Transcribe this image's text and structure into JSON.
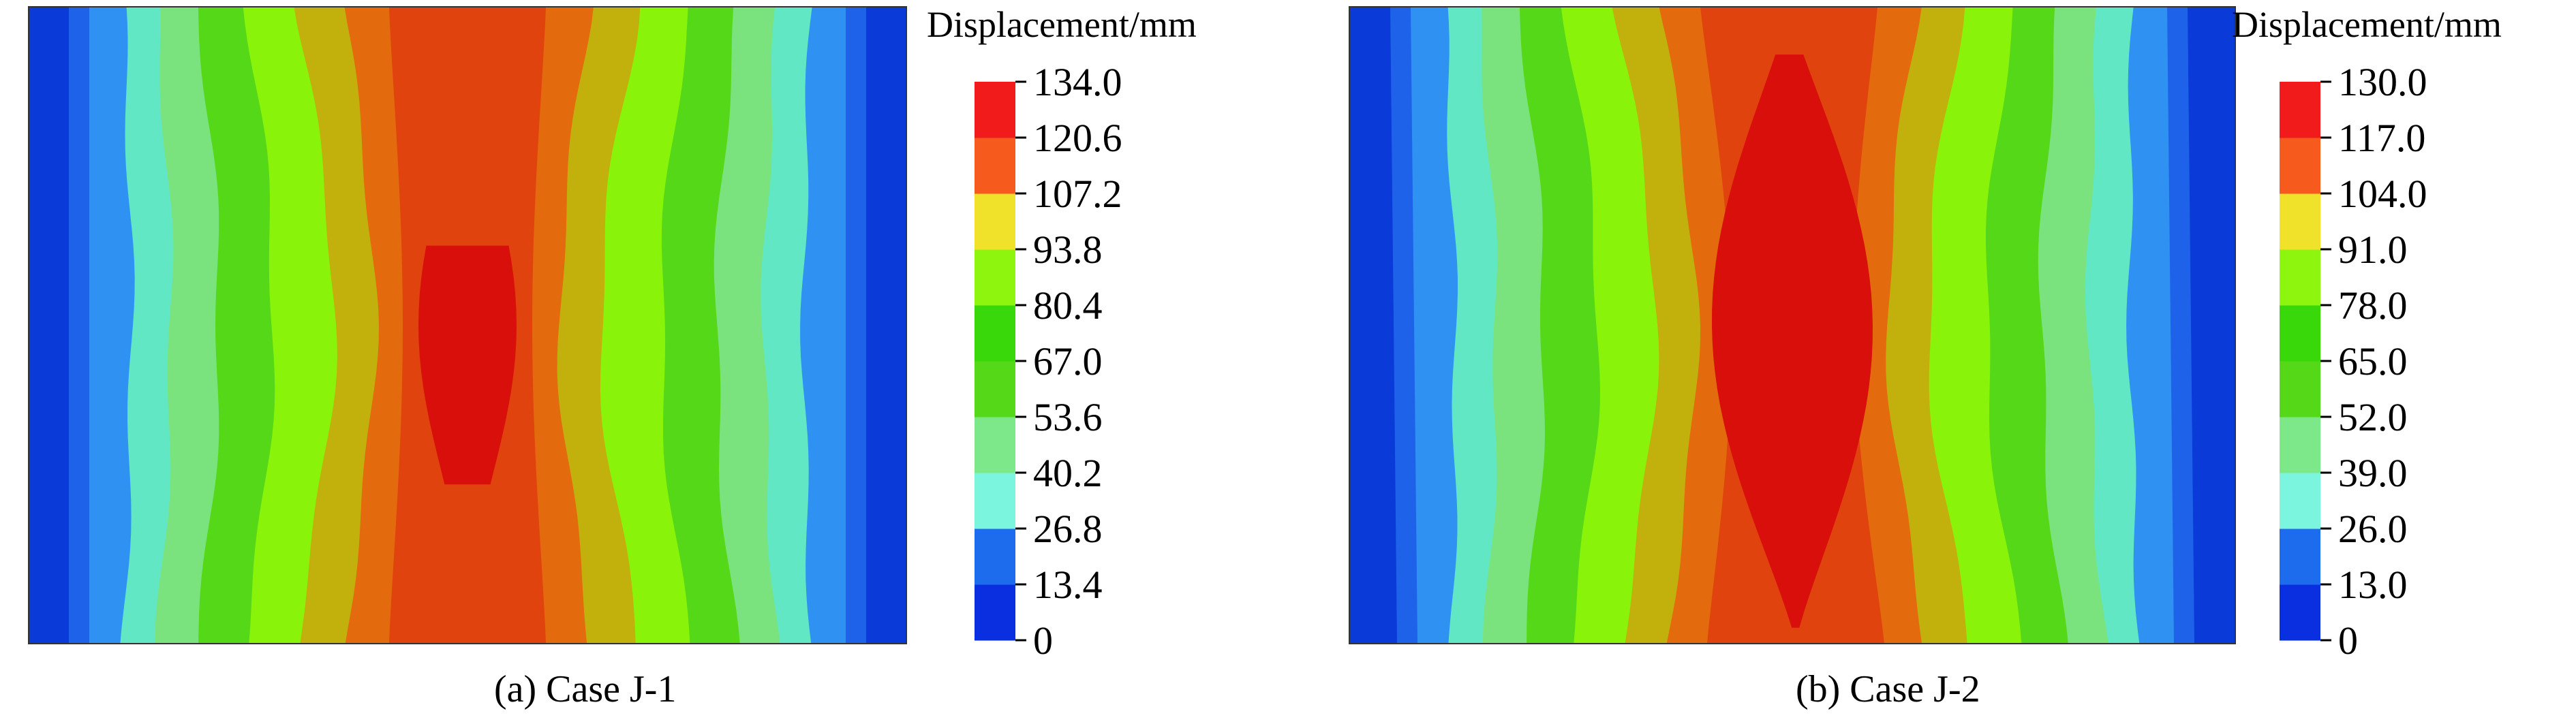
{
  "chart_data": [
    {
      "type": "heatmap",
      "subtype": "displacement-contour",
      "caption": "(a) Case J-1",
      "colorbar_title": "Displacement/mm",
      "levels": [
        "0",
        "13.4",
        "26.8",
        "40.2",
        "53.6",
        "67.0",
        "80.4",
        "93.8",
        "107.2",
        "120.6",
        "134.0"
      ],
      "vmin": 0,
      "vmax": 134.0,
      "peak_value_band": [
        120.6,
        134.0
      ]
    },
    {
      "type": "heatmap",
      "subtype": "displacement-contour",
      "caption": "(b) Case J-2",
      "colorbar_title": "Displacement/mm",
      "levels": [
        "0",
        "13.0",
        "26.0",
        "39.0",
        "52.0",
        "65.0",
        "78.0",
        "91.0",
        "104.0",
        "117.0",
        "130.0"
      ],
      "vmin": 0,
      "vmax": 130.0,
      "peak_value_band": [
        117.0,
        130.0
      ]
    }
  ],
  "colors": {
    "band_colors": [
      "#0a3ad8",
      "#1e62ea",
      "#2f91f2",
      "#62e7c4",
      "#7ae37e",
      "#55d817",
      "#89f30a",
      "#c2b10d",
      "#e36b0e",
      "#e0430d",
      "#d80f0a"
    ],
    "colorbar_colors": [
      "#0a2fe0",
      "#1e6cee",
      "#7bf5dd",
      "#7de88a",
      "#55d817",
      "#39d80a",
      "#8ef50e",
      "#f0e22a",
      "#f65a1c",
      "#f21b1c"
    ]
  }
}
